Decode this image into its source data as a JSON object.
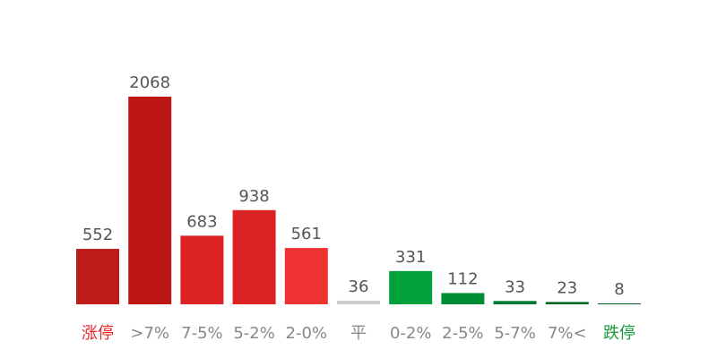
{
  "chart_data": {
    "type": "bar",
    "categories": [
      "涨停",
      ">7%",
      "7-5%",
      "5-2%",
      "2-0%",
      "平",
      "0-2%",
      "2-5%",
      "5-7%",
      "7%<",
      "跌停"
    ],
    "values": [
      552,
      2068,
      683,
      938,
      561,
      36,
      331,
      112,
      33,
      23,
      8
    ],
    "colors": [
      "#be1a1a",
      "#be1515",
      "#dc2222",
      "#dc2222",
      "#ef3333",
      "#cccccc",
      "#00a03c",
      "#008c32",
      "#00782d",
      "#006428",
      "#00642a"
    ],
    "label_colors": [
      "#e8262a",
      "#888888",
      "#888888",
      "#888888",
      "#888888",
      "#888888",
      "#888888",
      "#888888",
      "#888888",
      "#888888",
      "#1a9a3a"
    ]
  }
}
